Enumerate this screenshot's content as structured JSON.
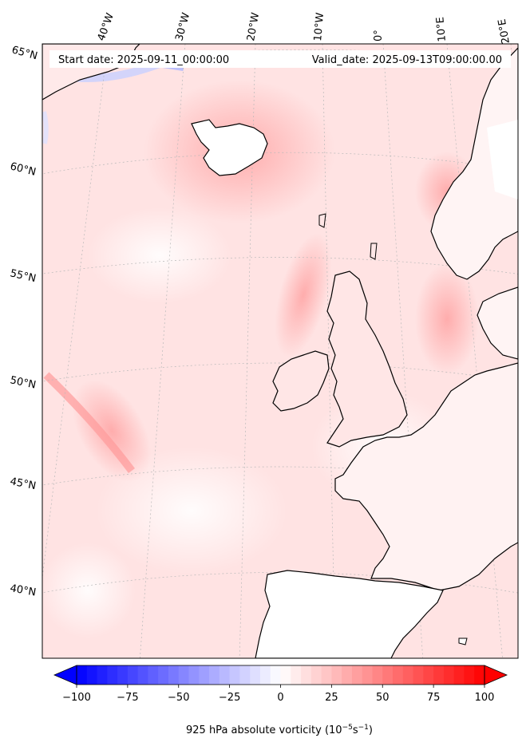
{
  "header": {
    "start_date": "Start date: 2025-09-11_00:00:00",
    "valid_date": "Valid_date: 2025-09-13T09:00:00.00"
  },
  "map": {
    "projection": "stereographic",
    "longitude_labels": [
      "40°W",
      "30°W",
      "20°W",
      "10°W",
      "0°",
      "10°E",
      "20°E"
    ],
    "latitude_labels": [
      "65°N",
      "60°N",
      "55°N",
      "50°N",
      "45°N",
      "40°N"
    ],
    "field": "925 hPa absolute vorticity",
    "gridlines": true
  },
  "colorbar": {
    "label": "925 hPa absolute vorticity (10",
    "label_exp1": "−5",
    "label_mid": "s",
    "label_exp2": "−1",
    "label_end": ")",
    "ticks": [
      "−100",
      "−75",
      "−50",
      "−25",
      "0",
      "25",
      "50",
      "75",
      "100"
    ],
    "range": [
      -100,
      100
    ],
    "colors": {
      "min": "#0000ff",
      "mid": "#ffffff",
      "max": "#ff0000"
    }
  }
}
